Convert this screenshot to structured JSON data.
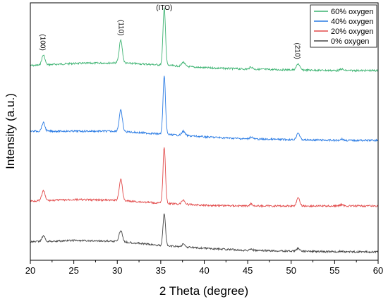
{
  "chart_data": {
    "type": "line",
    "xlabel": "2 Theta (degree)",
    "ylabel": "Intensity (a.u.)",
    "xlim": [
      20,
      60
    ],
    "xticks": [
      "20",
      "25",
      "30",
      "35",
      "40",
      "45",
      "50",
      "55",
      "60"
    ],
    "y_ticks_shown": false,
    "grid": false,
    "legend_position": "top-right",
    "peaks": [
      {
        "x": 21.5,
        "label": "(100)",
        "rotated": true
      },
      {
        "x": 30.5,
        "label": "(110)",
        "rotated": true
      },
      {
        "x": 35.4,
        "label": "(ITO)",
        "rotated": false
      },
      {
        "x": 50.8,
        "label": "(210)",
        "rotated": true
      }
    ],
    "series": [
      {
        "name": "60% oxygen",
        "color": "#3cb371",
        "baseline": [
          [
            20,
            93
          ],
          [
            25,
            90
          ],
          [
            30,
            89
          ],
          [
            35,
            92
          ],
          [
            40,
            96
          ],
          [
            45,
            98
          ],
          [
            50,
            99
          ],
          [
            55,
            100
          ],
          [
            60,
            100
          ]
        ],
        "peak_heights": [
          [
            21.5,
            14
          ],
          [
            30.4,
            32
          ],
          [
            35.4,
            82
          ],
          [
            37.6,
            6
          ],
          [
            45.4,
            3
          ],
          [
            50.8,
            9
          ],
          [
            55.8,
            2
          ]
        ]
      },
      {
        "name": "40% oxygen",
        "color": "#2a7be4",
        "baseline": [
          [
            20,
            186
          ],
          [
            25,
            186
          ],
          [
            30,
            186
          ],
          [
            35,
            190
          ],
          [
            40,
            194
          ],
          [
            45,
            197
          ],
          [
            50,
            198
          ],
          [
            55,
            199
          ],
          [
            60,
            199
          ]
        ],
        "peak_heights": [
          [
            21.5,
            12
          ],
          [
            30.4,
            30
          ],
          [
            35.4,
            82
          ],
          [
            37.6,
            6
          ],
          [
            45.4,
            3
          ],
          [
            50.8,
            10
          ],
          [
            55.8,
            2
          ]
        ]
      },
      {
        "name": "20% oxygen",
        "color": "#e24a4a",
        "baseline": [
          [
            20,
            285
          ],
          [
            25,
            283
          ],
          [
            30,
            284
          ],
          [
            35,
            288
          ],
          [
            40,
            291
          ],
          [
            45,
            292
          ],
          [
            50,
            292
          ],
          [
            55,
            292
          ],
          [
            60,
            292
          ]
        ],
        "peak_heights": [
          [
            21.5,
            14
          ],
          [
            30.4,
            30
          ],
          [
            35.4,
            80
          ],
          [
            37.6,
            6
          ],
          [
            45.4,
            3
          ],
          [
            50.8,
            11
          ],
          [
            55.8,
            2
          ]
        ]
      },
      {
        "name": "0% oxygen",
        "color": "#444444",
        "baseline": [
          [
            20,
            343
          ],
          [
            25,
            341
          ],
          [
            30,
            342
          ],
          [
            35,
            348
          ],
          [
            40,
            352
          ],
          [
            45,
            355
          ],
          [
            50,
            356
          ],
          [
            55,
            357
          ],
          [
            60,
            357
          ]
        ],
        "peak_heights": [
          [
            21.5,
            8
          ],
          [
            30.4,
            16
          ],
          [
            35.4,
            46
          ],
          [
            37.6,
            4
          ],
          [
            45.4,
            2
          ],
          [
            50.8,
            4
          ],
          [
            55.8,
            1
          ]
        ]
      }
    ]
  }
}
